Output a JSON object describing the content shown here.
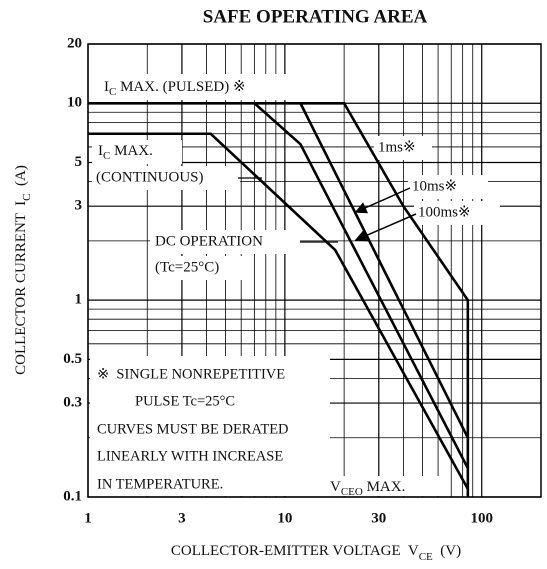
{
  "chart_data": {
    "type": "line",
    "title": "SAFE OPERATING AREA",
    "xlabel": [
      "COLLECTOR-EMITTER VOLTAGE  V",
      "CE",
      "  (V)"
    ],
    "ylabel": [
      "COLLECTOR CURRENT  I",
      "C",
      "  (A)"
    ],
    "xscale": "log",
    "yscale": "log",
    "grid": true,
    "color": "#000000",
    "xlim": [
      1,
      200
    ],
    "ylim": [
      0.1,
      20
    ],
    "xticks": [
      1,
      3,
      10,
      30,
      100
    ],
    "yticks": [
      0.1,
      0.3,
      0.5,
      1,
      3,
      5,
      10,
      20
    ],
    "xminor": [
      2,
      4,
      5,
      6,
      7,
      8,
      9,
      20,
      40,
      50,
      60,
      70,
      80,
      90
    ],
    "yminor": [
      0.2,
      0.4,
      0.6,
      0.7,
      0.8,
      0.9,
      2,
      4,
      6,
      7,
      8,
      9
    ],
    "series": [
      {
        "name": "1ms※",
        "color": "#000000",
        "x": [
          1,
          20,
          40,
          85,
          85
        ],
        "values": [
          10,
          10,
          3,
          1,
          0.1
        ]
      },
      {
        "name": "10ms※",
        "color": "#000000",
        "x": [
          12,
          85
        ],
        "values": [
          10,
          0.2
        ]
      },
      {
        "name": "100ms※",
        "color": "#000000",
        "x": [
          7,
          12,
          85
        ],
        "values": [
          10,
          6.2,
          0.14
        ]
      },
      {
        "name": "DC OPERATION",
        "color": "#000000",
        "x": [
          1,
          4.2,
          18,
          85
        ],
        "values": [
          7,
          7,
          1.8,
          0.11
        ]
      }
    ],
    "annotations": [
      [
        "I",
        "C",
        " MAX. (PULSED) ※"
      ],
      [
        "I",
        "C",
        " MAX."
      ],
      [
        "(CONTINUOUS)"
      ],
      [
        "(Tc=25°C)"
      ],
      [
        "※  SINGLE NONREPETITIVE"
      ],
      [
        "PULSE Tc=25°C"
      ],
      [
        "CURVES MUST BE DERATED"
      ],
      [
        "LINEARLY WITH INCREASE"
      ],
      [
        "IN TEMPERATURE."
      ],
      [
        "V",
        "CEO",
        " MAX."
      ]
    ]
  }
}
